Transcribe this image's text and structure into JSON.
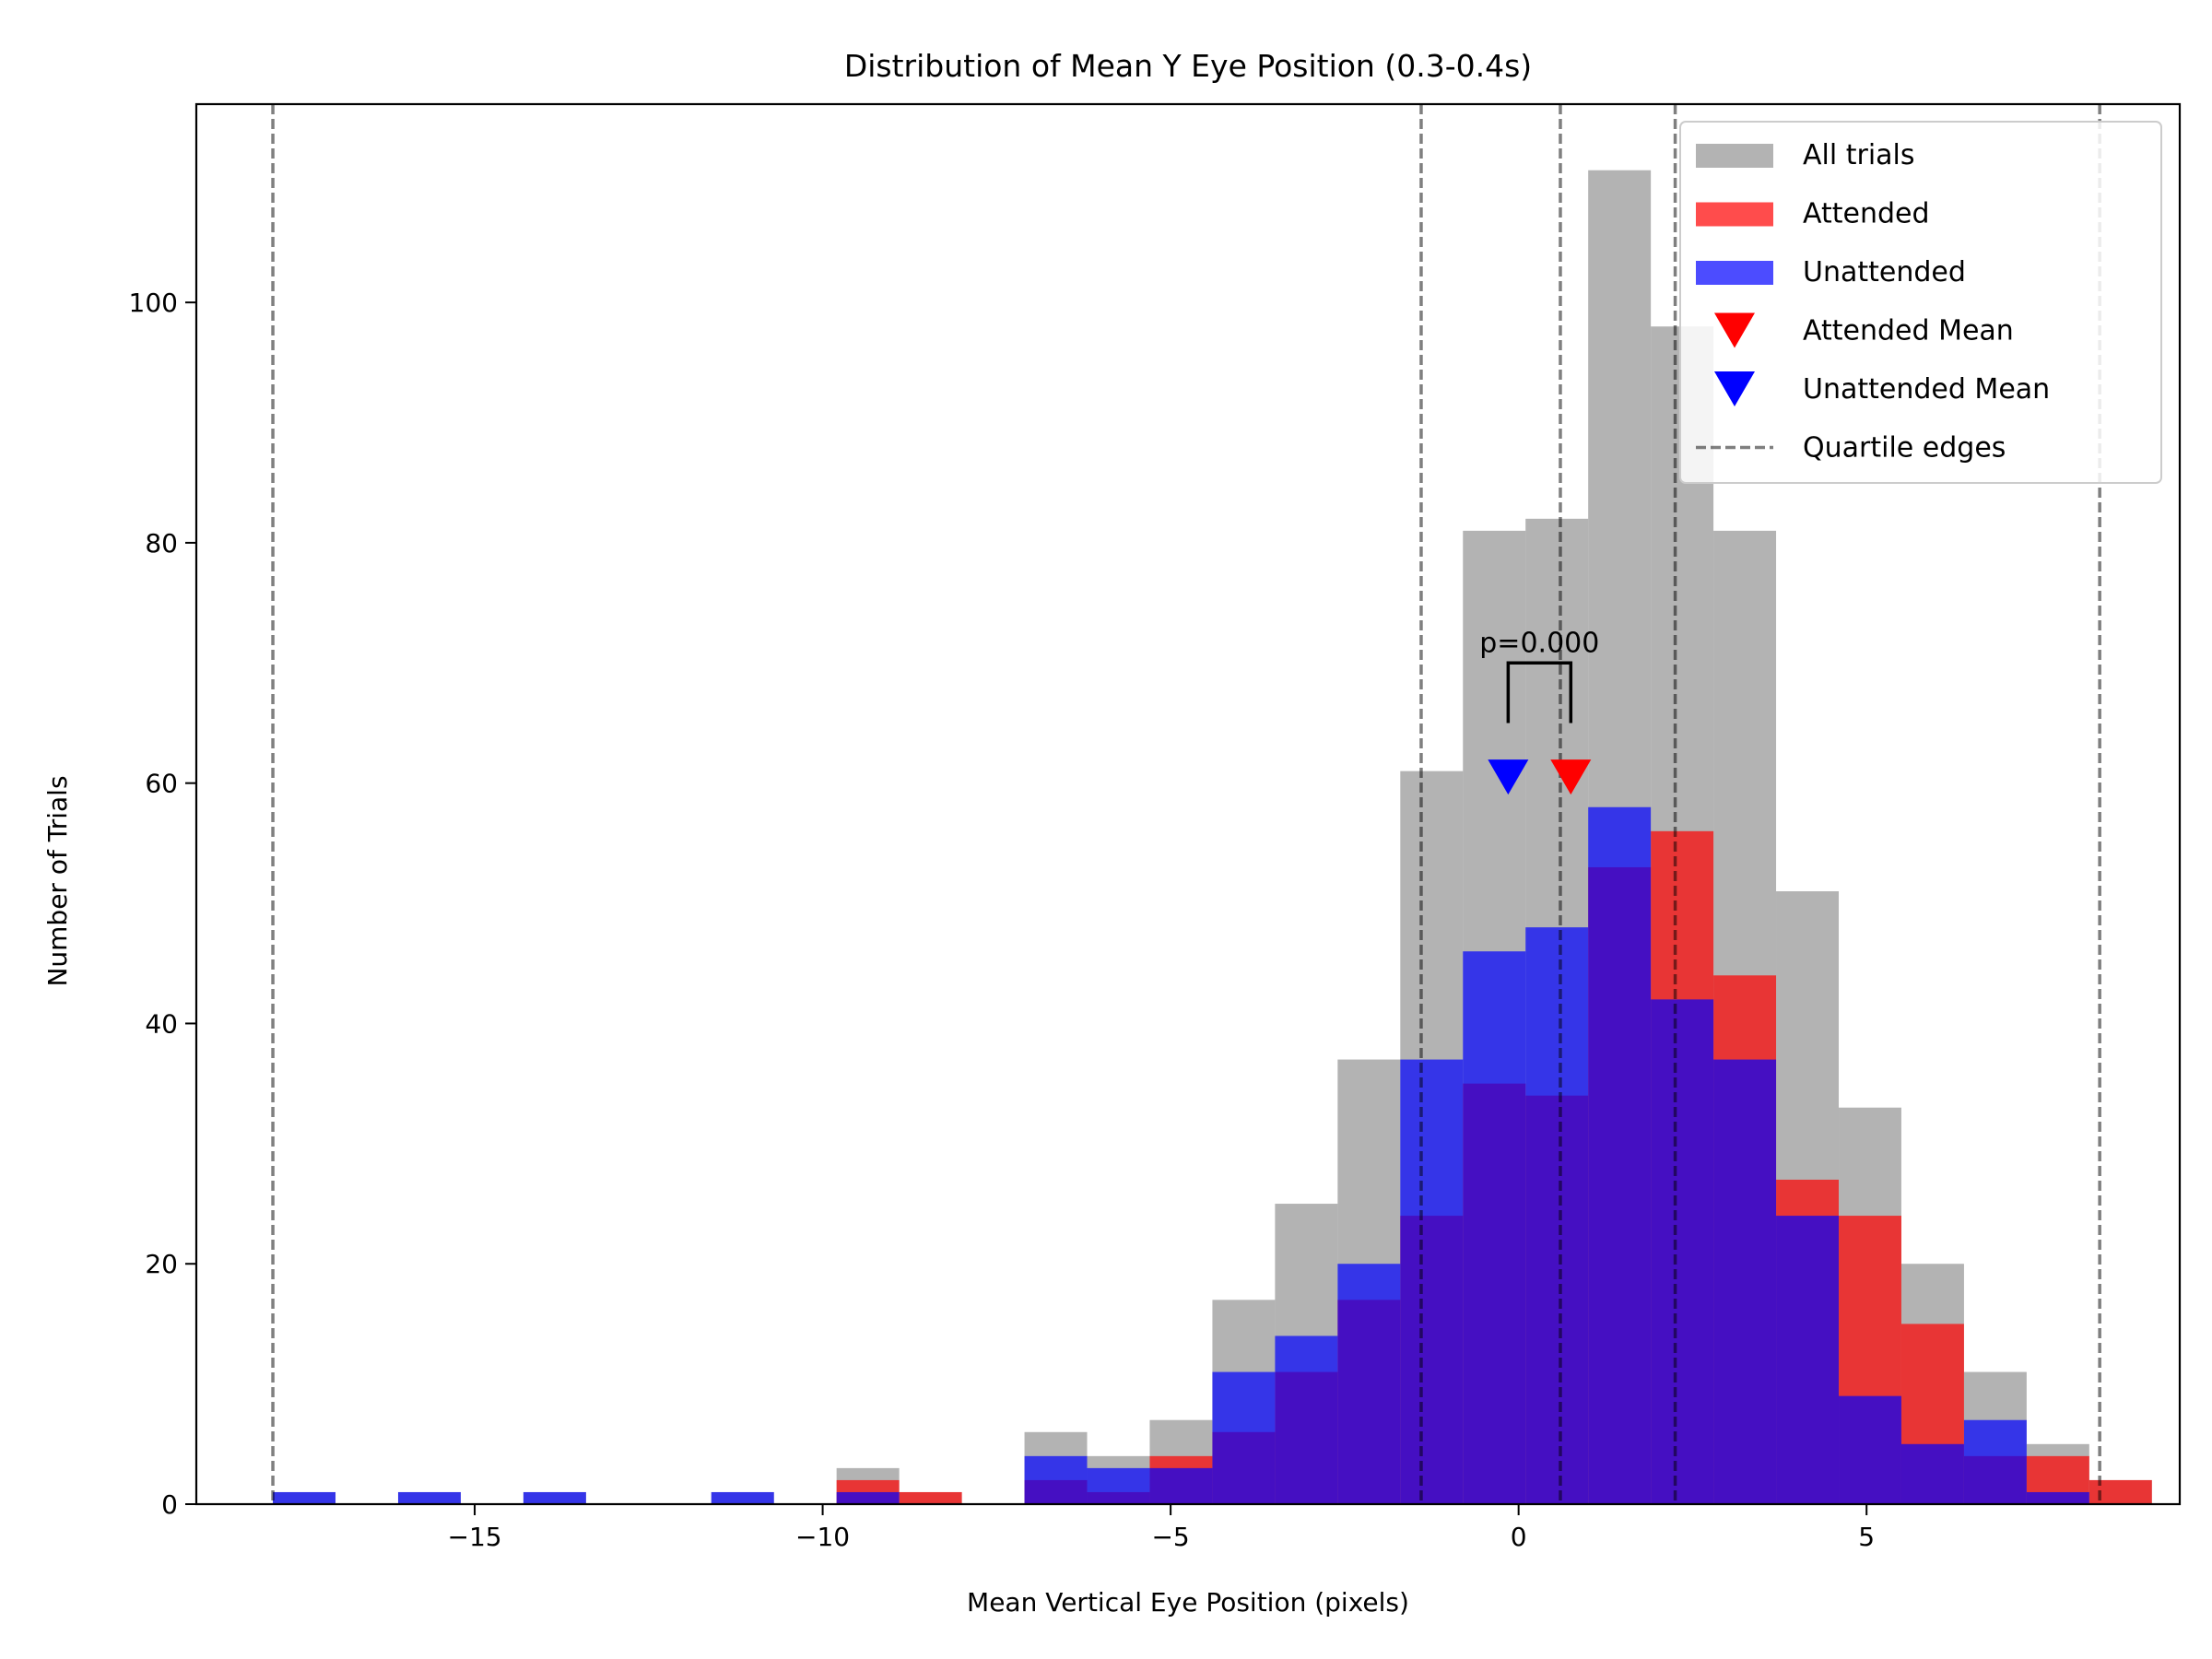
{
  "chart_data": {
    "type": "bar",
    "title": "Distribution of Mean Y Eye Position (0.3-0.4s)",
    "xlabel": "Mean Vertical Eye Position (pixels)",
    "ylabel": "Number of Trials",
    "xlim": [
      -19.0,
      9.5
    ],
    "ylim": [
      0,
      116.5
    ],
    "xticks": [
      {
        "value": -15,
        "label": "−15"
      },
      {
        "value": -10,
        "label": "−10"
      },
      {
        "value": -5,
        "label": "−5"
      },
      {
        "value": 0,
        "label": "0"
      },
      {
        "value": 5,
        "label": "5"
      }
    ],
    "yticks": [
      {
        "value": 0,
        "label": "0"
      },
      {
        "value": 20,
        "label": "20"
      },
      {
        "value": 40,
        "label": "40"
      },
      {
        "value": 60,
        "label": "60"
      },
      {
        "value": 80,
        "label": "80"
      },
      {
        "value": 100,
        "label": "100"
      }
    ],
    "grid": false,
    "legend_position": "top-right",
    "bin_start": -17.9,
    "bin_width": 0.9,
    "series": [
      {
        "name": "All trials",
        "color": "#808080",
        "opacity": 0.6,
        "values": [
          1,
          0,
          1,
          0,
          1,
          0,
          0,
          1,
          0,
          3,
          1,
          0,
          6,
          4,
          7,
          17,
          25,
          37,
          61,
          81,
          82,
          111,
          98,
          81,
          51,
          33,
          20,
          11,
          5,
          2
        ]
      },
      {
        "name": "Attended",
        "color": "#ff0000",
        "opacity": 0.7,
        "values": [
          0,
          0,
          0,
          0,
          0,
          0,
          0,
          0,
          0,
          2,
          1,
          0,
          2,
          1,
          4,
          6,
          11,
          17,
          24,
          35,
          34,
          53,
          56,
          44,
          27,
          24,
          15,
          4,
          4,
          2
        ]
      },
      {
        "name": "Unattended",
        "color": "#0000ff",
        "opacity": 0.7,
        "values": [
          1,
          0,
          1,
          0,
          1,
          0,
          0,
          1,
          0,
          1,
          0,
          0,
          4,
          3,
          3,
          11,
          14,
          20,
          37,
          46,
          48,
          58,
          42,
          37,
          24,
          9,
          5,
          7,
          1,
          0
        ]
      }
    ],
    "markers": [
      {
        "name": "Attended Mean",
        "color": "#ff0000",
        "x": 0.75,
        "y": 60.5
      },
      {
        "name": "Unattended Mean",
        "color": "#0000ff",
        "x": -0.15,
        "y": 60.5
      }
    ],
    "quartile_edges": {
      "name": "Quartile edges",
      "color": "#808080",
      "values": [
        -17.9,
        -1.4,
        0.6,
        2.25,
        8.35
      ]
    },
    "significance": {
      "label": "p=0.000",
      "x1": -0.15,
      "x2": 0.75,
      "y_low": 65,
      "y_high": 70
    }
  }
}
